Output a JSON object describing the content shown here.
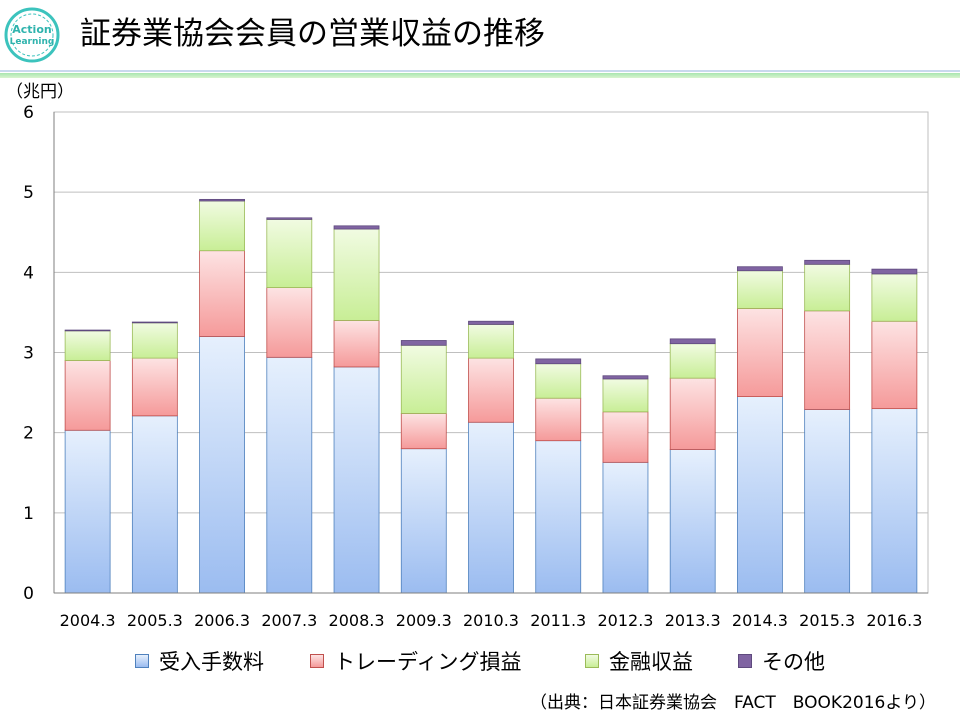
{
  "header": {
    "title": "証券業協会会員の営業収益の推移",
    "logo_text_1": "Action",
    "logo_text_2": "Learning"
  },
  "chart_data": {
    "type": "bar",
    "stacked": true,
    "unit_label": "（兆円）",
    "categories": [
      "2004.3",
      "2005.3",
      "2006.3",
      "2007.3",
      "2008.3",
      "2009.3",
      "2010.3",
      "2011.3",
      "2012.3",
      "2013.3",
      "2014.3",
      "2015.3",
      "2016.3"
    ],
    "series": [
      {
        "name": "受入手数料",
        "color": "#aec8f0",
        "values": [
          2.03,
          2.21,
          3.2,
          2.94,
          2.82,
          1.8,
          2.13,
          1.9,
          1.63,
          1.79,
          2.45,
          2.29,
          2.3
        ]
      },
      {
        "name": "トレーディング損益",
        "color": "#f7a9a9",
        "values": [
          0.87,
          0.72,
          1.07,
          0.87,
          0.58,
          0.44,
          0.8,
          0.53,
          0.63,
          0.89,
          1.1,
          1.23,
          1.09
        ]
      },
      {
        "name": "金融収益",
        "color": "#d2f2a8",
        "values": [
          0.37,
          0.44,
          0.62,
          0.85,
          1.14,
          0.85,
          0.42,
          0.43,
          0.41,
          0.43,
          0.47,
          0.58,
          0.59
        ]
      },
      {
        "name": "その他",
        "color": "#8064a2",
        "values": [
          0.01,
          0.01,
          0.02,
          0.02,
          0.04,
          0.06,
          0.04,
          0.06,
          0.04,
          0.06,
          0.05,
          0.05,
          0.06
        ]
      }
    ],
    "y_ticks": [
      0,
      1,
      2,
      3,
      4,
      5,
      6
    ],
    "ylim": [
      0,
      6
    ],
    "grid": true,
    "legend_position": "bottom"
  },
  "source": "（出典：日本証券業協会　FACT　BOOK2016より）"
}
